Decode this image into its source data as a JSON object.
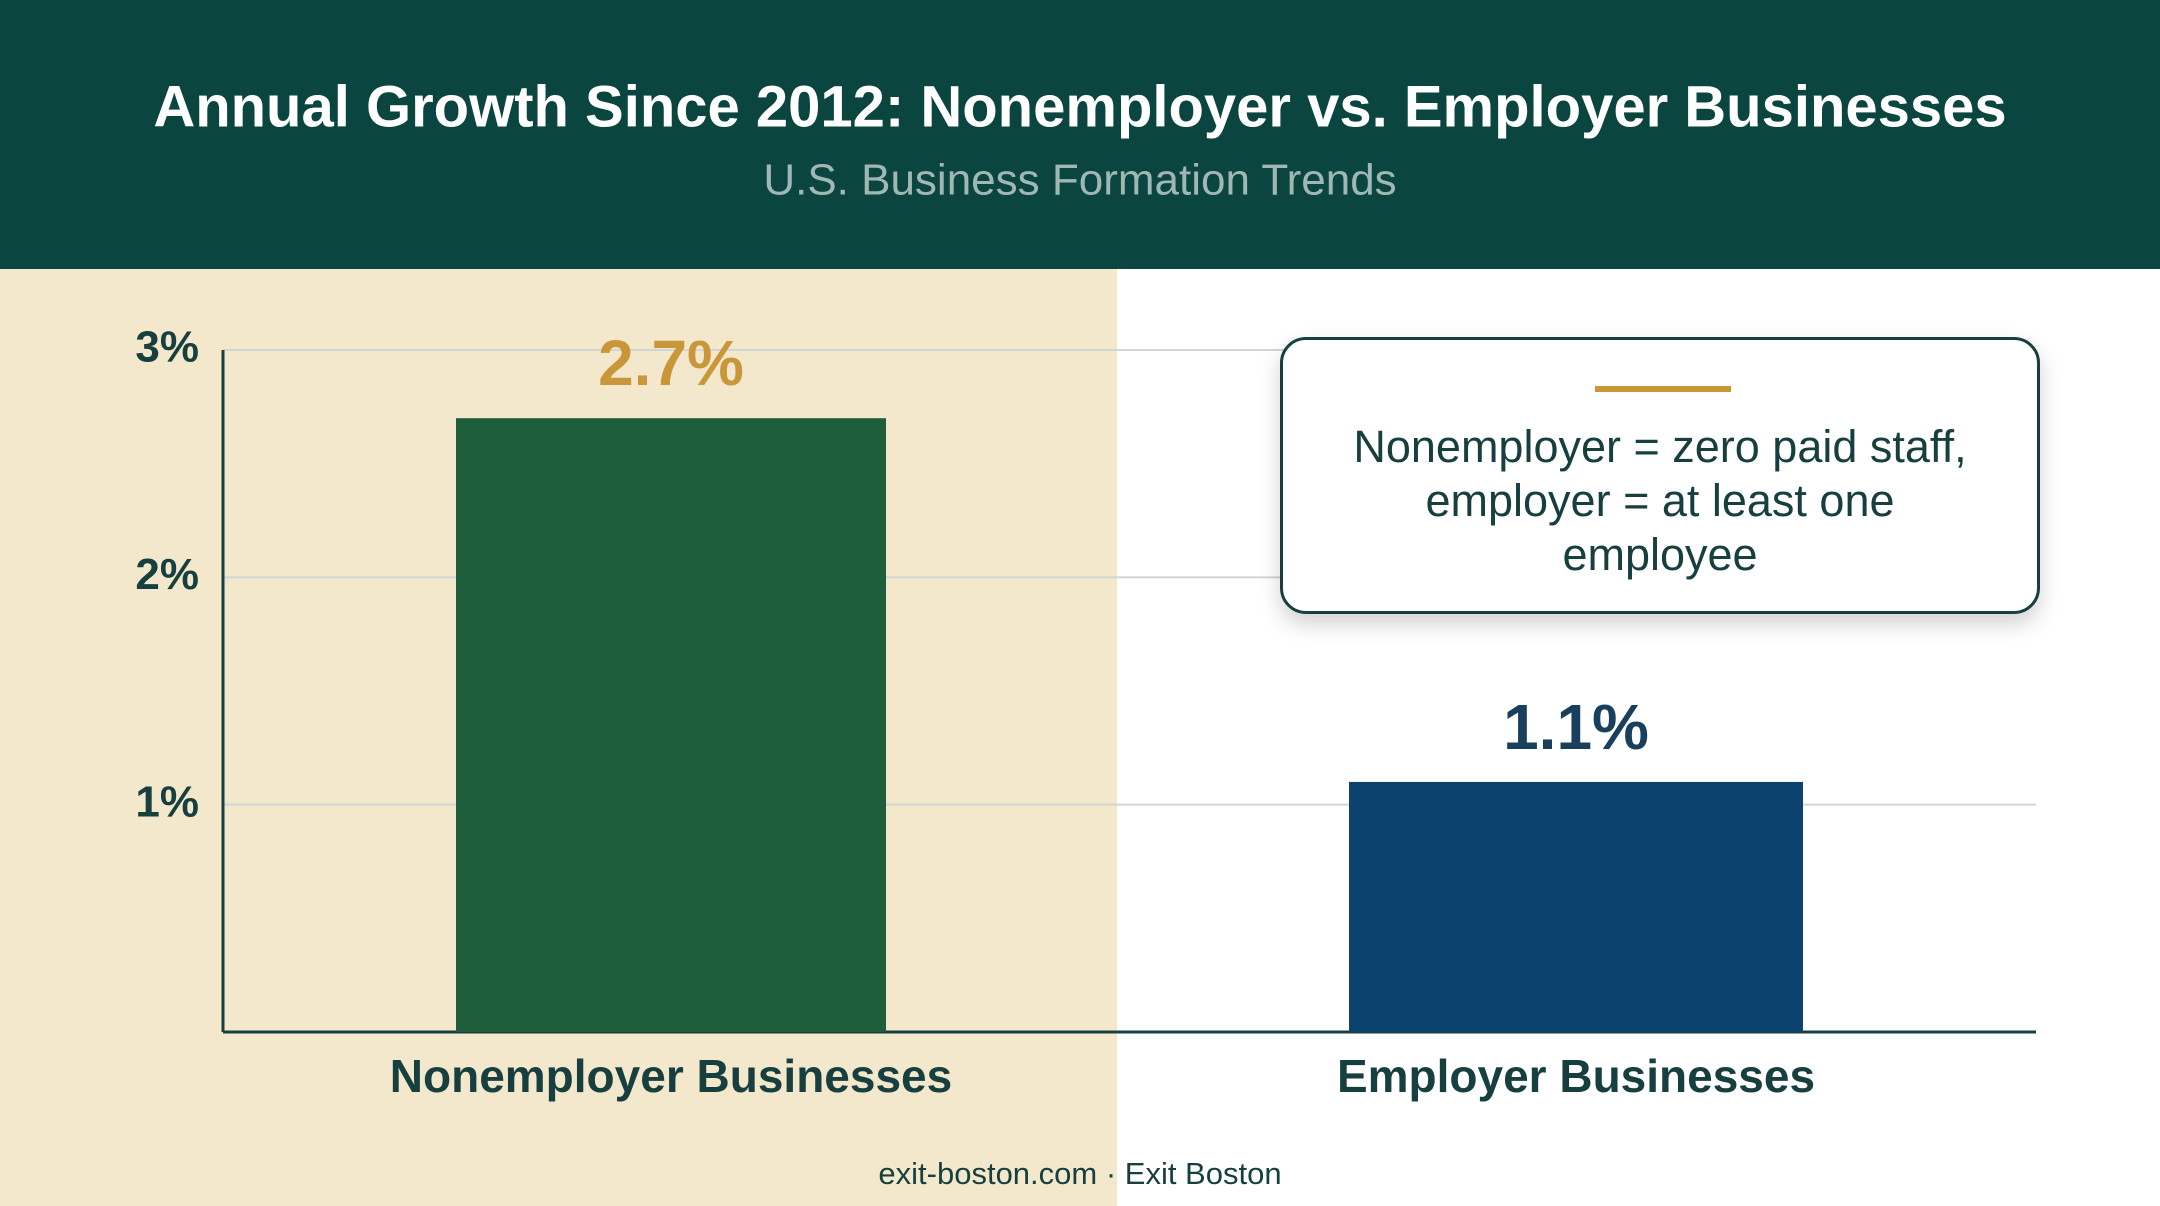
{
  "chart_data": {
    "type": "bar",
    "title": "Annual Growth Since 2012: Nonemployer vs. Employer Businesses",
    "subtitle": "U.S. Business Formation Trends",
    "categories": [
      "Nonemployer Businesses",
      "Employer Businesses"
    ],
    "values": [
      2.7,
      1.1
    ],
    "value_labels": [
      "2.7%",
      "1.1%"
    ],
    "colors": [
      "#1f5e3a",
      "#0c426e"
    ],
    "ylim": [
      0,
      3
    ],
    "yticks": [
      {
        "value": 1,
        "label": "1%"
      },
      {
        "value": 2,
        "label": "2%"
      },
      {
        "value": 3,
        "label": "3%"
      }
    ],
    "grid": true,
    "annotation": "Nonemployer = zero paid staff, employer = at least one employee",
    "source": "exit-boston.com · Exit Boston"
  }
}
